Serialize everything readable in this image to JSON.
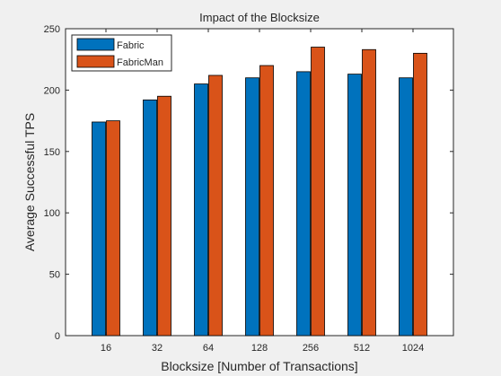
{
  "chart_data": {
    "type": "bar",
    "title": "Impact of the Blocksize",
    "xlabel": "Blocksize [Number of Transactions]",
    "ylabel": "Average Successful TPS",
    "categories": [
      "16",
      "32",
      "64",
      "128",
      "256",
      "512",
      "1024"
    ],
    "series": [
      {
        "name": "Fabric",
        "color": "#0072BD",
        "values": [
          174,
          192,
          205,
          210,
          215,
          213,
          210
        ]
      },
      {
        "name": "FabricMan",
        "color": "#D95319",
        "values": [
          175,
          195,
          212,
          220,
          235,
          233,
          230
        ]
      }
    ],
    "ylim": [
      0,
      250
    ],
    "yticks": [
      0,
      50,
      100,
      150,
      200,
      250
    ],
    "grid": false,
    "legend_position": "top-left"
  }
}
